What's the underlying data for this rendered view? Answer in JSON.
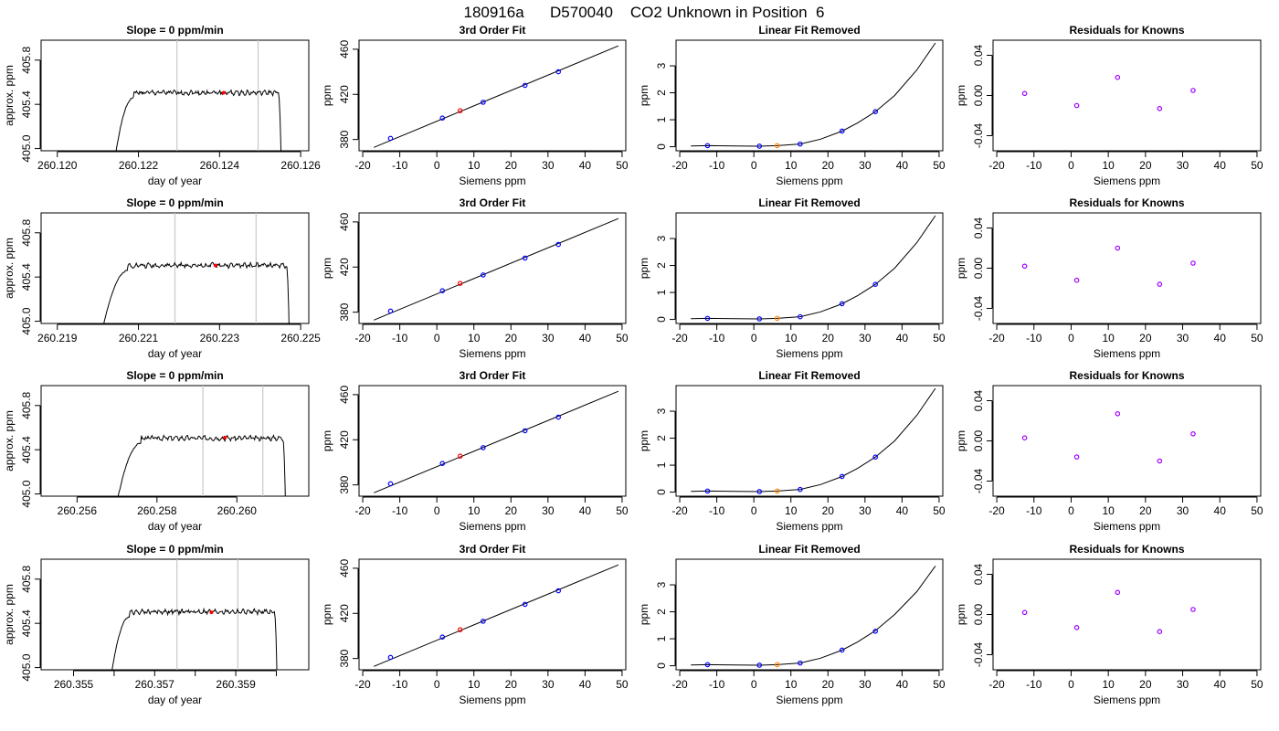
{
  "figure": {
    "title": "180916a      D570040    CO2 Unknown in Position  6"
  },
  "chart_data": [
    {
      "type": "line",
      "row": 1,
      "panel": "timeseries",
      "title": "Slope =  0  ppm/min",
      "xlabel": "day of year",
      "ylabel": "approx. ppm",
      "xlim": [
        260.1196,
        260.1262
      ],
      "ylim": [
        404.98,
        405.98
      ],
      "xticks": [
        260.12,
        260.122,
        260.124,
        260.126
      ],
      "xtick_labels": [
        "260.120",
        "260.122",
        "260.124",
        "260.126"
      ],
      "yticks": [
        405.0,
        405.4,
        405.8
      ],
      "ytick_labels": [
        "405.0",
        "405.4",
        "405.8"
      ],
      "vlines": [
        260.12295,
        260.12495
      ],
      "trace": {
        "start": 260.1212,
        "end": 260.12555,
        "plateau": 405.505,
        "rise_x": 260.1214,
        "fall_x": 260.12545,
        "seed": 1
      },
      "point": {
        "x": 260.1241,
        "y": 405.505
      }
    },
    {
      "type": "scatter",
      "row": 1,
      "panel": "fit",
      "title": "3rd Order Fit",
      "xlabel": "Siemens ppm",
      "ylabel": "ppm",
      "xlim": [
        -21,
        51
      ],
      "ylim": [
        370,
        468
      ],
      "xticks": [
        -20,
        -10,
        0,
        10,
        20,
        30,
        40,
        50
      ],
      "yticks": [
        380,
        420,
        460
      ],
      "line": {
        "x": [
          -17,
          49
        ],
        "y": [
          373,
          463
        ]
      },
      "knowns": {
        "x": [
          -12.5,
          1.5,
          12.5,
          23.8,
          32.8
        ],
        "y": [
          381,
          399,
          413,
          428,
          440
        ]
      },
      "unknown": {
        "x": 6.3,
        "y": 405.5
      }
    },
    {
      "type": "line",
      "row": 1,
      "panel": "linear_removed",
      "title": "Linear Fit Removed",
      "xlabel": "Siemens ppm",
      "ylabel": "ppm",
      "xlim": [
        -21,
        51
      ],
      "ylim": [
        -0.15,
        3.95
      ],
      "xticks": [
        -20,
        -10,
        0,
        10,
        20,
        30,
        40,
        50
      ],
      "yticks": [
        0,
        1,
        2,
        3
      ],
      "curve": {
        "x": [
          -17,
          -12.5,
          -5,
          1.5,
          6.3,
          12.5,
          18,
          23.8,
          28,
          32.8,
          38,
          44,
          49
        ],
        "y": [
          0.03,
          0.04,
          0.03,
          0.02,
          0.04,
          0.1,
          0.28,
          0.58,
          0.88,
          1.3,
          1.9,
          2.85,
          3.85
        ]
      },
      "knowns": {
        "x": [
          -12.5,
          1.5,
          12.5,
          23.8,
          32.8
        ],
        "y": [
          0.04,
          0.02,
          0.1,
          0.58,
          1.3
        ]
      },
      "unknown": {
        "x": 6.3,
        "y": 0.04
      }
    },
    {
      "type": "scatter",
      "row": 1,
      "panel": "residuals",
      "title": "Residuals for Knowns",
      "xlabel": "Siemens ppm",
      "ylabel": "ppm",
      "xlim": [
        -21,
        51
      ],
      "ylim": [
        -0.055,
        0.055
      ],
      "xticks": [
        -20,
        -10,
        0,
        10,
        20,
        30,
        40,
        50
      ],
      "yticks": [
        -0.04,
        0.0,
        0.04
      ],
      "ytick_labels": [
        "-0.04",
        "0.00",
        "0.04"
      ],
      "knowns": {
        "x": [
          -12.5,
          1.5,
          12.5,
          23.8,
          32.8
        ],
        "y": [
          0.002,
          -0.01,
          0.018,
          -0.013,
          0.005
        ]
      }
    },
    {
      "type": "line",
      "row": 2,
      "panel": "timeseries",
      "title": "Slope =  0  ppm/min",
      "xlabel": "day of year",
      "ylabel": "approx. ppm",
      "xlim": [
        260.2186,
        260.2252
      ],
      "ylim": [
        404.98,
        405.98
      ],
      "xticks": [
        260.219,
        260.221,
        260.223,
        260.225
      ],
      "xtick_labels": [
        "260.219",
        "260.221",
        "260.223",
        "260.225"
      ],
      "yticks": [
        405.0,
        405.4,
        405.8
      ],
      "ytick_labels": [
        "405.0",
        "405.4",
        "405.8"
      ],
      "vlines": [
        260.2219,
        260.2239
      ],
      "trace": {
        "start": 260.2198,
        "end": 260.22475,
        "plateau": 405.505,
        "rise_x": 260.2202,
        "fall_x": 260.22465,
        "seed": 2
      },
      "point": {
        "x": 260.2229,
        "y": 405.505
      }
    },
    {
      "type": "scatter",
      "row": 2,
      "panel": "fit",
      "title": "3rd Order Fit",
      "xlabel": "Siemens ppm",
      "ylabel": "ppm",
      "xlim": [
        -21,
        51
      ],
      "ylim": [
        370,
        468
      ],
      "xticks": [
        -20,
        -10,
        0,
        10,
        20,
        30,
        40,
        50
      ],
      "yticks": [
        380,
        420,
        460
      ],
      "line": {
        "x": [
          -17,
          49
        ],
        "y": [
          373,
          463
        ]
      },
      "knowns": {
        "x": [
          -12.5,
          1.5,
          12.5,
          23.8,
          32.8
        ],
        "y": [
          381,
          399,
          413,
          428,
          440
        ]
      },
      "unknown": {
        "x": 6.3,
        "y": 405.5
      }
    },
    {
      "type": "line",
      "row": 2,
      "panel": "linear_removed",
      "title": "Linear Fit Removed",
      "xlabel": "Siemens ppm",
      "ylabel": "ppm",
      "xlim": [
        -21,
        51
      ],
      "ylim": [
        -0.15,
        3.95
      ],
      "xticks": [
        -20,
        -10,
        0,
        10,
        20,
        30,
        40,
        50
      ],
      "yticks": [
        0,
        1,
        2,
        3
      ],
      "curve": {
        "x": [
          -17,
          -12.5,
          -5,
          1.5,
          6.3,
          12.5,
          18,
          23.8,
          28,
          32.8,
          38,
          44,
          49
        ],
        "y": [
          0.03,
          0.04,
          0.03,
          0.02,
          0.04,
          0.1,
          0.28,
          0.58,
          0.88,
          1.3,
          1.9,
          2.85,
          3.85
        ]
      },
      "knowns": {
        "x": [
          -12.5,
          1.5,
          12.5,
          23.8,
          32.8
        ],
        "y": [
          0.04,
          0.02,
          0.1,
          0.58,
          1.3
        ]
      },
      "unknown": {
        "x": 6.3,
        "y": 0.04
      }
    },
    {
      "type": "scatter",
      "row": 2,
      "panel": "residuals",
      "title": "Residuals for Knowns",
      "xlabel": "Siemens ppm",
      "ylabel": "ppm",
      "xlim": [
        -21,
        51
      ],
      "ylim": [
        -0.055,
        0.055
      ],
      "xticks": [
        -20,
        -10,
        0,
        10,
        20,
        30,
        40,
        50
      ],
      "yticks": [
        -0.04,
        0.0,
        0.04
      ],
      "ytick_labels": [
        "-0.04",
        "0.00",
        "0.04"
      ],
      "knowns": {
        "x": [
          -12.5,
          1.5,
          12.5,
          23.8,
          32.8
        ],
        "y": [
          0.002,
          -0.012,
          0.02,
          -0.016,
          0.005
        ]
      }
    },
    {
      "type": "line",
      "row": 3,
      "panel": "timeseries",
      "title": "Slope =  0  ppm/min",
      "xlabel": "day of year",
      "ylabel": "approx. ppm",
      "xlim": [
        260.2551,
        260.2618
      ],
      "ylim": [
        404.98,
        405.98
      ],
      "xticks": [
        260.256,
        260.258,
        260.26
      ],
      "xtick_labels": [
        "260.256",
        "260.258",
        "260.260"
      ],
      "yticks": [
        405.0,
        405.4,
        405.8
      ],
      "ytick_labels": [
        "405.0",
        "405.4",
        "405.8"
      ],
      "vlines": [
        260.25915,
        260.26065
      ],
      "trace": {
        "start": 260.2567,
        "end": 260.26125,
        "plateau": 405.505,
        "rise_x": 260.2571,
        "fall_x": 260.26115,
        "seed": 3
      },
      "point": {
        "x": 260.2597,
        "y": 405.51
      }
    },
    {
      "type": "scatter",
      "row": 3,
      "panel": "fit",
      "title": "3rd Order Fit",
      "xlabel": "Siemens ppm",
      "ylabel": "ppm",
      "xlim": [
        -21,
        51
      ],
      "ylim": [
        370,
        468
      ],
      "xticks": [
        -20,
        -10,
        0,
        10,
        20,
        30,
        40,
        50
      ],
      "yticks": [
        380,
        420,
        460
      ],
      "line": {
        "x": [
          -17,
          49
        ],
        "y": [
          373,
          463
        ]
      },
      "knowns": {
        "x": [
          -12.5,
          1.5,
          12.5,
          23.8,
          32.8
        ],
        "y": [
          381,
          399,
          413,
          428,
          440
        ]
      },
      "unknown": {
        "x": 6.3,
        "y": 405.5
      }
    },
    {
      "type": "line",
      "row": 3,
      "panel": "linear_removed",
      "title": "Linear Fit Removed",
      "xlabel": "Siemens ppm",
      "ylabel": "ppm",
      "xlim": [
        -21,
        51
      ],
      "ylim": [
        -0.15,
        3.95
      ],
      "xticks": [
        -20,
        -10,
        0,
        10,
        20,
        30,
        40,
        50
      ],
      "yticks": [
        0,
        1,
        2,
        3
      ],
      "curve": {
        "x": [
          -17,
          -12.5,
          -5,
          1.5,
          6.3,
          12.5,
          18,
          23.8,
          28,
          32.8,
          38,
          44,
          49
        ],
        "y": [
          0.03,
          0.04,
          0.03,
          0.02,
          0.04,
          0.1,
          0.28,
          0.58,
          0.88,
          1.3,
          1.9,
          2.85,
          3.85
        ]
      },
      "knowns": {
        "x": [
          -12.5,
          1.5,
          12.5,
          23.8,
          32.8
        ],
        "y": [
          0.04,
          0.02,
          0.1,
          0.58,
          1.3
        ]
      },
      "unknown": {
        "x": 6.3,
        "y": 0.04
      }
    },
    {
      "type": "scatter",
      "row": 3,
      "panel": "residuals",
      "title": "Residuals for Knowns",
      "xlabel": "Siemens ppm",
      "ylabel": "ppm",
      "xlim": [
        -21,
        51
      ],
      "ylim": [
        -0.055,
        0.055
      ],
      "xticks": [
        -20,
        -10,
        0,
        10,
        20,
        30,
        40,
        50
      ],
      "yticks": [
        -0.04,
        0.0,
        0.04
      ],
      "ytick_labels": [
        "-0.04",
        "0.00",
        "0.04"
      ],
      "knowns": {
        "x": [
          -12.5,
          1.5,
          12.5,
          23.8,
          32.8
        ],
        "y": [
          0.003,
          -0.016,
          0.027,
          -0.02,
          0.007
        ]
      }
    },
    {
      "type": "line",
      "row": 4,
      "panel": "timeseries",
      "title": "Slope =  0  ppm/min",
      "xlabel": "day of year",
      "ylabel": "approx. ppm",
      "xlim": [
        260.3542,
        260.3608
      ],
      "ylim": [
        404.98,
        405.98
      ],
      "xticks": [
        260.355,
        260.356,
        260.357,
        260.358,
        260.359,
        260.36
      ],
      "xtick_labels": [
        "260.355",
        "",
        "260.357",
        "",
        "260.359",
        ""
      ],
      "yticks": [
        405.0,
        405.4,
        405.8
      ],
      "ytick_labels": [
        "405.0",
        "405.4",
        "405.8"
      ],
      "vlines": [
        260.35755,
        260.35905
      ],
      "trace": {
        "start": 260.3557,
        "end": 260.36005,
        "plateau": 405.505,
        "rise_x": 260.3559,
        "fall_x": 260.35995,
        "seed": 4
      },
      "point": {
        "x": 260.3584,
        "y": 405.5
      }
    },
    {
      "type": "scatter",
      "row": 4,
      "panel": "fit",
      "title": "3rd Order Fit",
      "xlabel": "Siemens ppm",
      "ylabel": "ppm",
      "xlim": [
        -21,
        51
      ],
      "ylim": [
        370,
        468
      ],
      "xticks": [
        -20,
        -10,
        0,
        10,
        20,
        30,
        40,
        50
      ],
      "yticks": [
        380,
        420,
        460
      ],
      "line": {
        "x": [
          -17,
          49
        ],
        "y": [
          373,
          463
        ]
      },
      "knowns": {
        "x": [
          -12.5,
          1.5,
          12.5,
          23.8,
          32.8
        ],
        "y": [
          381,
          399,
          413,
          428,
          440
        ]
      },
      "unknown": {
        "x": 6.3,
        "y": 405.5
      }
    },
    {
      "type": "line",
      "row": 4,
      "panel": "linear_removed",
      "title": "Linear Fit Removed",
      "xlabel": "Siemens ppm",
      "ylabel": "ppm",
      "xlim": [
        -21,
        51
      ],
      "ylim": [
        -0.15,
        3.95
      ],
      "xticks": [
        -20,
        -10,
        0,
        10,
        20,
        30,
        40,
        50
      ],
      "yticks": [
        0,
        1,
        2,
        3
      ],
      "curve": {
        "x": [
          -17,
          -12.5,
          -5,
          1.5,
          6.3,
          12.5,
          18,
          23.8,
          28,
          32.8,
          38,
          44,
          49
        ],
        "y": [
          0.03,
          0.04,
          0.03,
          0.02,
          0.04,
          0.1,
          0.28,
          0.58,
          0.88,
          1.3,
          1.9,
          2.75,
          3.7
        ]
      },
      "knowns": {
        "x": [
          -12.5,
          1.5,
          12.5,
          23.8,
          32.8
        ],
        "y": [
          0.04,
          0.02,
          0.1,
          0.58,
          1.28
        ]
      },
      "unknown": {
        "x": 6.3,
        "y": 0.04
      }
    },
    {
      "type": "scatter",
      "row": 4,
      "panel": "residuals",
      "title": "Residuals for Knowns",
      "xlabel": "Siemens ppm",
      "ylabel": "ppm",
      "xlim": [
        -21,
        51
      ],
      "ylim": [
        -0.055,
        0.055
      ],
      "xticks": [
        -20,
        -10,
        0,
        10,
        20,
        30,
        40,
        50
      ],
      "yticks": [
        -0.04,
        0.0,
        0.04
      ],
      "ytick_labels": [
        "-0.04",
        "0.00",
        "0.04"
      ],
      "knowns": {
        "x": [
          -12.5,
          1.5,
          12.5,
          23.8,
          32.8
        ],
        "y": [
          0.002,
          -0.013,
          0.022,
          -0.017,
          0.005
        ]
      }
    }
  ],
  "colors": {
    "trace": "#000000",
    "vline": "#c8c8c8",
    "known_marker": "#0000ff",
    "unknown_marker": "#ff0000",
    "unknown_marker_linear_removed": "#ff8000",
    "residual_marker": "#a000ff"
  }
}
